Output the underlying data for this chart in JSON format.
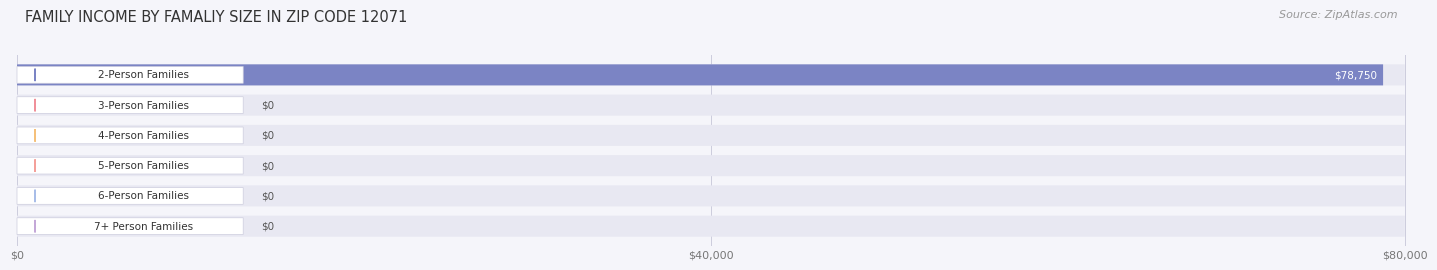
{
  "title": "FAMILY INCOME BY FAMALIY SIZE IN ZIP CODE 12071",
  "source": "Source: ZipAtlas.com",
  "categories": [
    "2-Person Families",
    "3-Person Families",
    "4-Person Families",
    "5-Person Families",
    "6-Person Families",
    "7+ Person Families"
  ],
  "values": [
    78750,
    0,
    0,
    0,
    0,
    0
  ],
  "bar_colors": [
    "#7b84c4",
    "#f0909a",
    "#f5c07a",
    "#f4a09a",
    "#a8bde8",
    "#c4a8d8"
  ],
  "max_value": 80000,
  "xticks": [
    0,
    40000,
    80000
  ],
  "xtick_labels": [
    "$0",
    "$40,000",
    "$80,000"
  ],
  "background_color": "#f5f5fa",
  "bar_bg_color": "#e8e8f2",
  "title_fontsize": 10.5,
  "source_fontsize": 8,
  "label_fontsize": 7.5,
  "value_fontsize": 7.5
}
